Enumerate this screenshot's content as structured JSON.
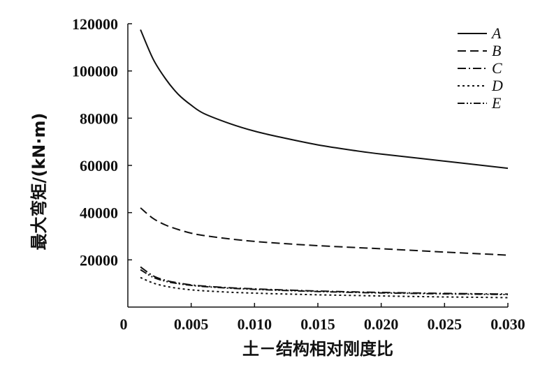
{
  "chart_data": {
    "type": "line",
    "xlabel": "土－结构相对刚度比",
    "ylabel": "最大弯矩/(kN·m)",
    "xlim": [
      0,
      0.03
    ],
    "ylim": [
      0,
      120000
    ],
    "xticks": [
      "0",
      "0.005",
      "0.010",
      "0.015",
      "0.020",
      "0.025",
      "0.030"
    ],
    "xtick_values": [
      0,
      0.005,
      0.01,
      0.015,
      0.02,
      0.025,
      0.03
    ],
    "yticks": [
      "20000",
      "40000",
      "60000",
      "80000",
      "100000",
      "120000"
    ],
    "ytick_values": [
      20000,
      40000,
      60000,
      80000,
      100000,
      120000
    ],
    "legend_position": "top-right",
    "grid": false,
    "series": [
      {
        "name": "A",
        "style": "solid",
        "x": [
          0.001,
          0.002,
          0.003,
          0.004,
          0.005,
          0.006,
          0.008,
          0.01,
          0.012,
          0.015,
          0.018,
          0.02,
          0.025,
          0.03
        ],
        "y": [
          117500,
          105000,
          96500,
          90000,
          85500,
          82000,
          77800,
          74500,
          72000,
          68700,
          66200,
          64800,
          61800,
          58800
        ]
      },
      {
        "name": "B",
        "style": "dashed",
        "x": [
          0.001,
          0.002,
          0.003,
          0.004,
          0.005,
          0.006,
          0.008,
          0.01,
          0.012,
          0.015,
          0.018,
          0.02,
          0.025,
          0.03
        ],
        "y": [
          42000,
          37500,
          34700,
          32800,
          31300,
          30300,
          28900,
          27800,
          27000,
          26000,
          25200,
          24700,
          23300,
          22000
        ]
      },
      {
        "name": "C",
        "style": "dash-dot",
        "x": [
          0.001,
          0.002,
          0.003,
          0.004,
          0.005,
          0.006,
          0.008,
          0.01,
          0.012,
          0.015,
          0.018,
          0.02,
          0.025,
          0.03
        ],
        "y": [
          17000,
          13200,
          11300,
          10200,
          9400,
          8900,
          8200,
          7700,
          7300,
          6800,
          6400,
          6200,
          5800,
          5500
        ]
      },
      {
        "name": "D",
        "style": "dotted",
        "x": [
          0.001,
          0.002,
          0.003,
          0.004,
          0.005,
          0.006,
          0.008,
          0.01,
          0.012,
          0.015,
          0.018,
          0.02,
          0.025,
          0.03
        ],
        "y": [
          12500,
          10200,
          8800,
          7900,
          7300,
          6900,
          6300,
          5900,
          5600,
          5200,
          4900,
          4700,
          4300,
          4000
        ]
      },
      {
        "name": "E",
        "style": "dash-dot-dot",
        "x": [
          0.001,
          0.002,
          0.003,
          0.004,
          0.005,
          0.006,
          0.008,
          0.01,
          0.012,
          0.015,
          0.018,
          0.02,
          0.025,
          0.03
        ],
        "y": [
          15800,
          12600,
          10900,
          9900,
          9200,
          8700,
          8000,
          7500,
          7100,
          6600,
          6200,
          6000,
          5600,
          5300
        ]
      }
    ]
  },
  "colors": {
    "line": "#111111",
    "background": "#ffffff"
  }
}
